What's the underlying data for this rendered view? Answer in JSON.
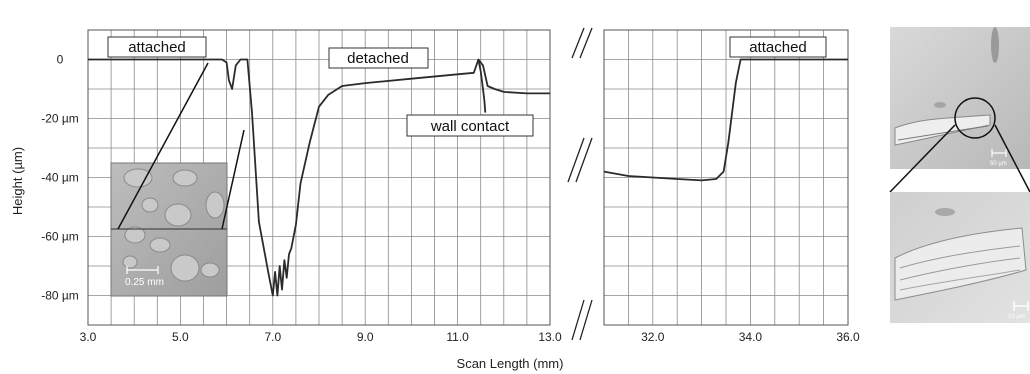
{
  "chart_data": {
    "type": "line",
    "xlabel": "Scan Length (mm)",
    "ylabel": "Height (µm)",
    "ylim": [
      -90,
      10
    ],
    "y_ticks": [
      {
        "value": 0,
        "label": "0"
      },
      {
        "value": -20,
        "label": "-20 µm"
      },
      {
        "value": -40,
        "label": "-40 µm"
      },
      {
        "value": -60,
        "label": "-60 µm"
      },
      {
        "value": -80,
        "label": "-80 µm"
      }
    ],
    "panels": [
      {
        "xlim": [
          3.0,
          13.0
        ],
        "x_ticks": [
          {
            "value": 3.0,
            "label": "3.0"
          },
          {
            "value": 5.0,
            "label": "5.0"
          },
          {
            "value": 7.0,
            "label": "7.0"
          },
          {
            "value": 9.0,
            "label": "9.0"
          },
          {
            "value": 11.0,
            "label": "11.0"
          },
          {
            "value": 13.0,
            "label": "13.0"
          }
        ],
        "series": [
          {
            "x": [
              3.0,
              5.9,
              6.0,
              6.05,
              6.12,
              6.2,
              6.3,
              6.45,
              6.55,
              6.7,
              6.9,
              7.0,
              7.05,
              7.1,
              7.15,
              7.2,
              7.25,
              7.3,
              7.35,
              7.4,
              7.5,
              7.6,
              7.8,
              8.0,
              8.2,
              8.5,
              9.0,
              10.0,
              11.0,
              11.35,
              11.45,
              11.55,
              11.65,
              11.8,
              12.0,
              12.5,
              13.0
            ],
            "y": [
              0,
              0,
              -1,
              -7,
              -10,
              -2,
              0,
              0,
              -18,
              -55,
              -72,
              -80,
              -72,
              -80,
              -70,
              -78,
              -68,
              -74,
              -66,
              -64,
              -56,
              -42,
              -28,
              -16,
              -12,
              -9,
              -8,
              -6.5,
              -5,
              -4.5,
              0,
              -2,
              -9,
              -10,
              -11,
              -11.5,
              -11.5
            ]
          },
          {
            "x": [
              11.45,
              11.5,
              11.55,
              11.58,
              11.6
            ],
            "y": [
              0,
              -4,
              -10,
              -14,
              -18
            ]
          }
        ]
      },
      {
        "xlim": [
          31.0,
          36.0
        ],
        "x_ticks": [
          {
            "value": 32.0,
            "label": "32.0"
          },
          {
            "value": 34.0,
            "label": "34.0"
          },
          {
            "value": 36.0,
            "label": "36.0"
          }
        ],
        "series": [
          {
            "x": [
              31.0,
              31.5,
              32.0,
              32.5,
              33.0,
              33.3,
              33.45,
              33.55,
              33.7,
              33.8,
              33.9,
              34.0,
              35.0,
              36.0
            ],
            "y": [
              -38,
              -39.5,
              -40,
              -40.5,
              -41,
              -40.5,
              -38,
              -28,
              -8,
              0,
              0,
              0,
              0,
              0
            ]
          }
        ]
      }
    ],
    "annotations": [
      {
        "text": "attached",
        "panel": 0
      },
      {
        "text": "detached",
        "panel": 0
      },
      {
        "text": "wall contact",
        "panel": 0
      },
      {
        "text": "attached",
        "panel": 1
      }
    ],
    "inset_scale_label": "0.25 mm",
    "photo_scale_top": "50 µm",
    "photo_scale_bottom": "10 µm",
    "grid": true
  }
}
